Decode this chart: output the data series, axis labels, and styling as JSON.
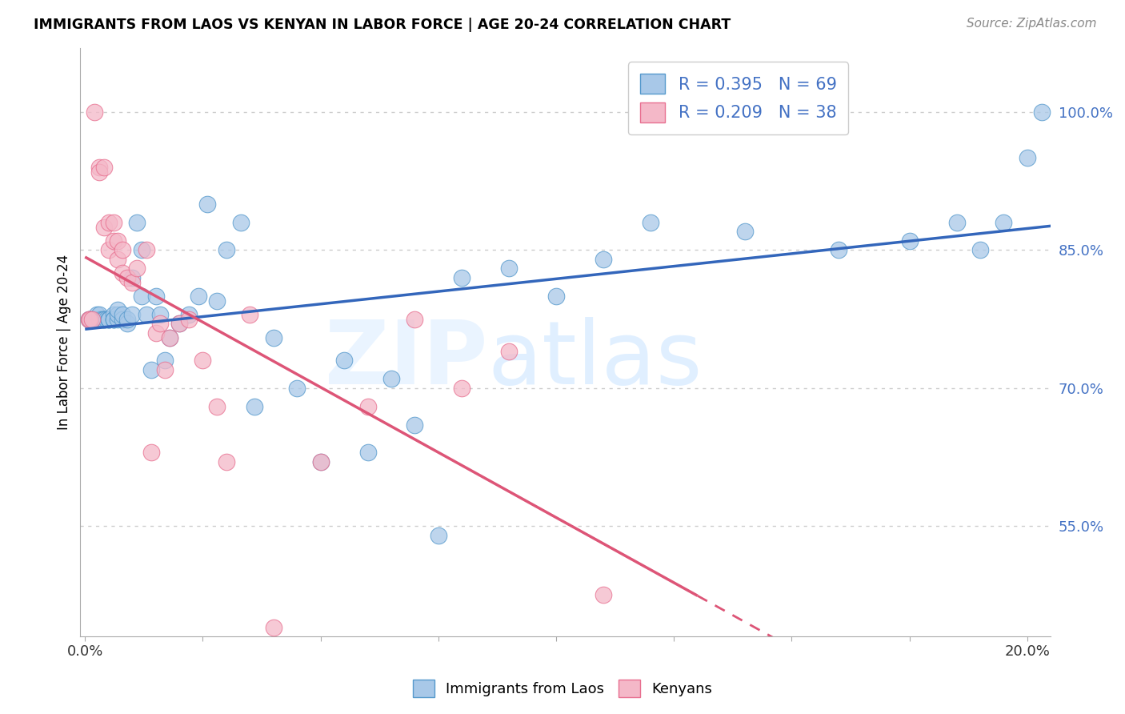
{
  "title": "IMMIGRANTS FROM LAOS VS KENYAN IN LABOR FORCE | AGE 20-24 CORRELATION CHART",
  "source": "Source: ZipAtlas.com",
  "ylabel": "In Labor Force | Age 20-24",
  "y_ticks": [
    55.0,
    70.0,
    85.0,
    100.0
  ],
  "y_tick_labels": [
    "55.0%",
    "70.0%",
    "85.0%",
    "100.0%"
  ],
  "legend_blue_label": "R = 0.395   N = 69",
  "legend_pink_label": "R = 0.209   N = 38",
  "bottom_legend_blue": "Immigrants from Laos",
  "bottom_legend_pink": "Kenyans",
  "blue_color": "#a8c8e8",
  "pink_color": "#f4b8c8",
  "blue_edge_color": "#5599cc",
  "pink_edge_color": "#e87090",
  "trend_blue_color": "#3366bb",
  "trend_pink_color": "#dd5577",
  "xlim": [
    -0.001,
    0.205
  ],
  "ylim": [
    0.43,
    1.07
  ],
  "blue_x": [
    0.0008,
    0.001,
    0.0015,
    0.002,
    0.002,
    0.0025,
    0.003,
    0.003,
    0.003,
    0.0035,
    0.004,
    0.004,
    0.004,
    0.0045,
    0.005,
    0.005,
    0.005,
    0.005,
    0.006,
    0.006,
    0.006,
    0.006,
    0.007,
    0.007,
    0.007,
    0.008,
    0.008,
    0.009,
    0.009,
    0.01,
    0.01,
    0.011,
    0.012,
    0.012,
    0.013,
    0.014,
    0.015,
    0.016,
    0.017,
    0.018,
    0.02,
    0.022,
    0.024,
    0.026,
    0.028,
    0.03,
    0.033,
    0.036,
    0.04,
    0.045,
    0.05,
    0.055,
    0.06,
    0.065,
    0.07,
    0.075,
    0.08,
    0.09,
    0.1,
    0.11,
    0.12,
    0.14,
    0.16,
    0.175,
    0.185,
    0.19,
    0.195,
    0.2,
    0.203
  ],
  "blue_y": [
    0.775,
    0.775,
    0.775,
    0.775,
    0.775,
    0.78,
    0.775,
    0.775,
    0.78,
    0.775,
    0.775,
    0.775,
    0.775,
    0.775,
    0.775,
    0.775,
    0.775,
    0.775,
    0.775,
    0.78,
    0.775,
    0.775,
    0.775,
    0.78,
    0.785,
    0.775,
    0.78,
    0.77,
    0.775,
    0.78,
    0.82,
    0.88,
    0.85,
    0.8,
    0.78,
    0.72,
    0.8,
    0.78,
    0.73,
    0.755,
    0.77,
    0.78,
    0.8,
    0.9,
    0.795,
    0.85,
    0.88,
    0.68,
    0.755,
    0.7,
    0.62,
    0.73,
    0.63,
    0.71,
    0.66,
    0.54,
    0.82,
    0.83,
    0.8,
    0.84,
    0.88,
    0.87,
    0.85,
    0.86,
    0.88,
    0.85,
    0.88,
    0.95,
    1.0
  ],
  "pink_x": [
    0.0008,
    0.001,
    0.0015,
    0.002,
    0.003,
    0.003,
    0.004,
    0.004,
    0.005,
    0.005,
    0.006,
    0.006,
    0.007,
    0.007,
    0.008,
    0.008,
    0.009,
    0.01,
    0.011,
    0.013,
    0.014,
    0.015,
    0.016,
    0.017,
    0.018,
    0.02,
    0.022,
    0.025,
    0.028,
    0.03,
    0.035,
    0.04,
    0.05,
    0.06,
    0.07,
    0.08,
    0.09,
    0.11
  ],
  "pink_y": [
    0.775,
    0.775,
    0.775,
    1.0,
    0.94,
    0.935,
    0.94,
    0.875,
    0.85,
    0.88,
    0.86,
    0.88,
    0.84,
    0.86,
    0.85,
    0.825,
    0.82,
    0.815,
    0.83,
    0.85,
    0.63,
    0.76,
    0.77,
    0.72,
    0.755,
    0.77,
    0.775,
    0.73,
    0.68,
    0.62,
    0.78,
    0.44,
    0.62,
    0.68,
    0.775,
    0.7,
    0.74,
    0.475
  ]
}
